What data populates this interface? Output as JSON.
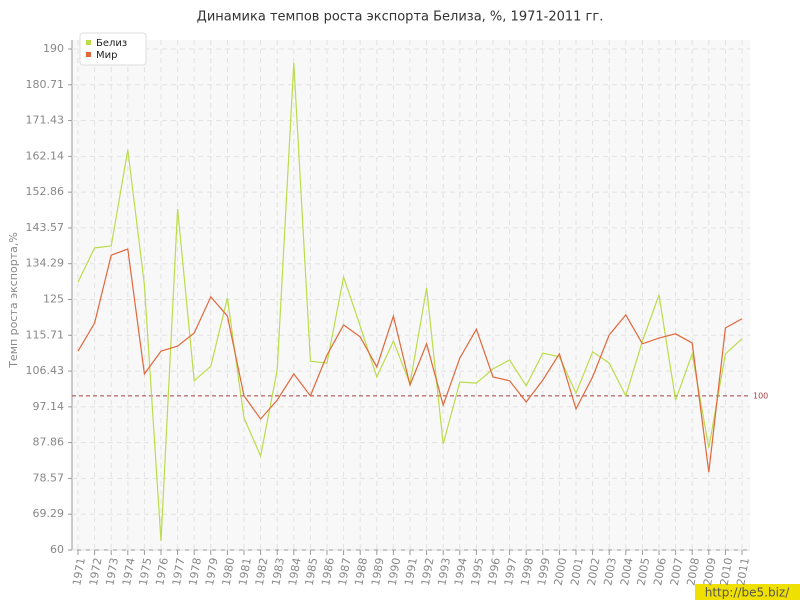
{
  "chart_data": {
    "type": "line",
    "title": "Динамика темпов роста экспорта Белиза, %, 1971-2011 гг.",
    "y_label": "Темп роста экспорта,%",
    "categories": [
      "1971",
      "1972",
      "1973",
      "1974",
      "1975",
      "1976",
      "1977",
      "1978",
      "1979",
      "1980",
      "1981",
      "1982",
      "1983",
      "1984",
      "1985",
      "1986",
      "1987",
      "1988",
      "1989",
      "1990",
      "1991",
      "1992",
      "1993",
      "1994",
      "1995",
      "1996",
      "1997",
      "1998",
      "1999",
      "2000",
      "2001",
      "2002",
      "2003",
      "2004",
      "2005",
      "2006",
      "2007",
      "2008",
      "2009",
      "2010",
      "2011"
    ],
    "series": [
      {
        "name": "Белиз",
        "color": "#bcdc4c",
        "values": [
          129.5,
          138.4,
          138.9,
          163.8,
          128.8,
          62.3,
          148.5,
          103.9,
          107.7,
          125.4,
          94.3,
          84.4,
          106.7,
          186.4,
          109,
          108.5,
          130.8,
          118.1,
          104.9,
          114.2,
          103.1,
          128,
          87.5,
          103.6,
          103.3,
          107,
          109.3,
          102.6,
          111.1,
          110.1,
          100.7,
          111.4,
          108.5,
          100,
          114.2,
          126.2,
          98.9,
          110.9,
          86.5,
          110.9,
          114.8
        ]
      },
      {
        "name": "Мир",
        "color": "#e0683c",
        "values": [
          111.6,
          118.9,
          136.5,
          138.1,
          105.7,
          111.6,
          112.9,
          116.3,
          125.7,
          120.7,
          100,
          94,
          98.9,
          105.7,
          100,
          110.6,
          118.4,
          115.3,
          107.5,
          120.7,
          102.8,
          113.5,
          97.6,
          109.8,
          117.3,
          104.9,
          103.9,
          98.4,
          104.1,
          110.9,
          96.6,
          104.9,
          115.8,
          121,
          113.5,
          115,
          116.1,
          113.7,
          80.2,
          117.6,
          120
        ]
      }
    ],
    "ylim": [
      60,
      190
    ],
    "yticks": [
      60,
      69.29,
      78.57,
      87.86,
      97.14,
      106.43,
      115.71,
      125,
      134.29,
      143.57,
      152.86,
      162.14,
      171.43,
      180.71,
      190
    ],
    "grid": true,
    "legend": "top-left",
    "reference_line": {
      "value": 100,
      "label": "100",
      "color": "#a04040"
    }
  },
  "watermark": "http://be5.biz/"
}
